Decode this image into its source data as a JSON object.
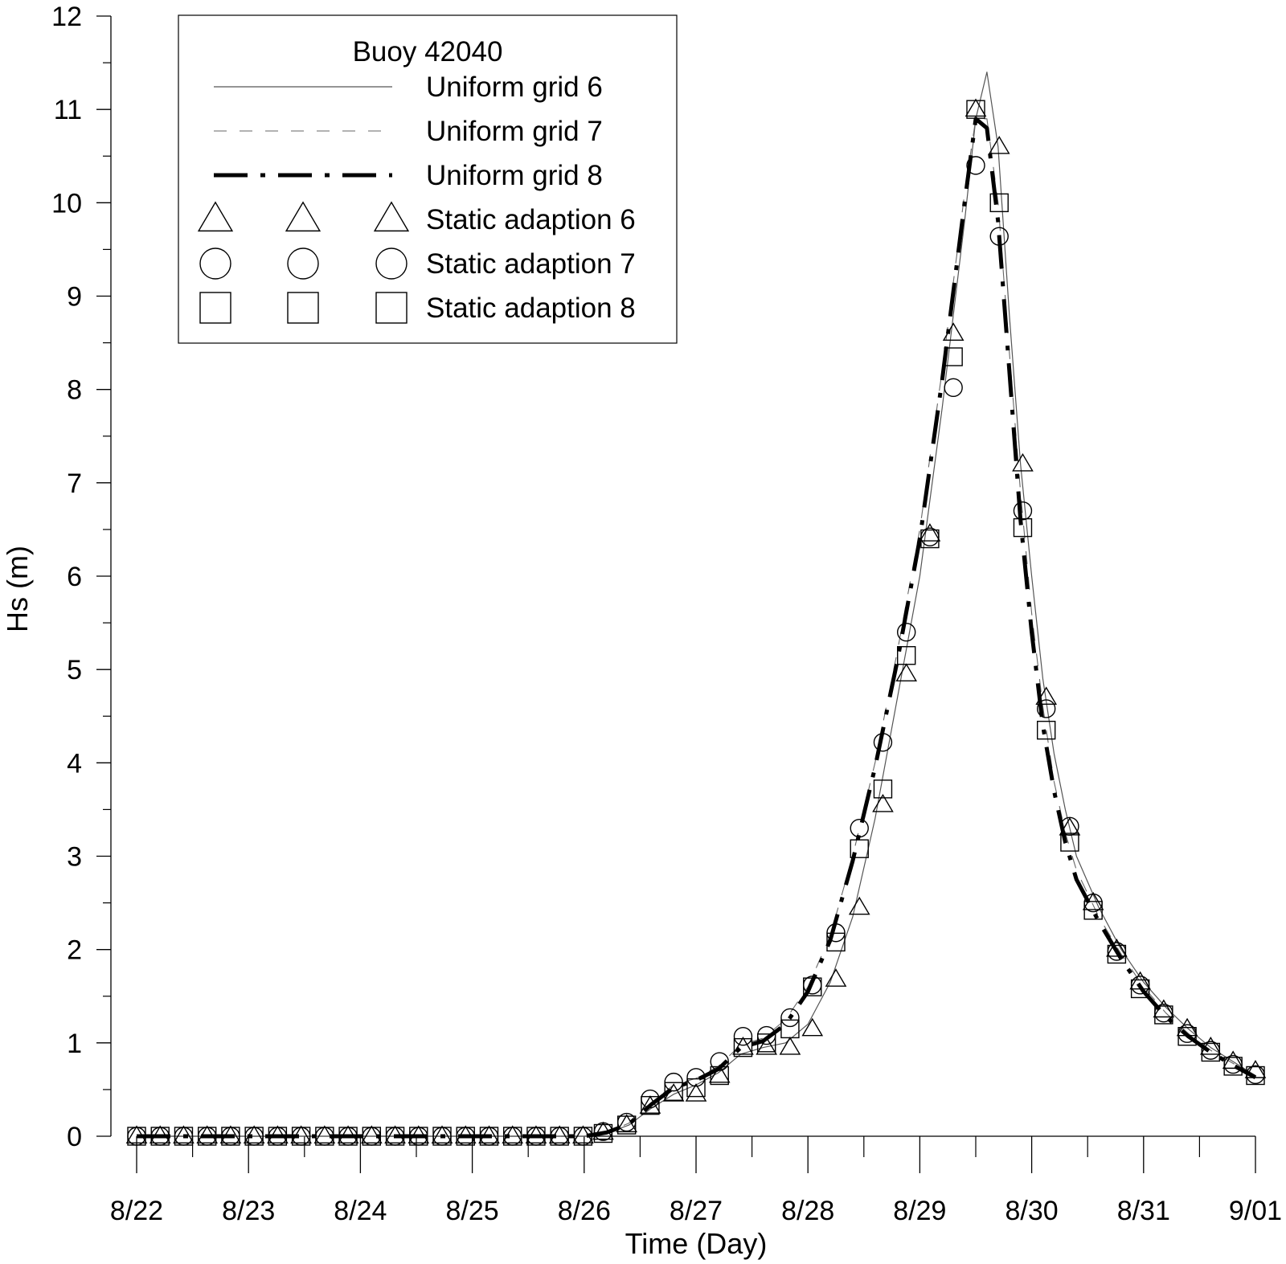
{
  "chart_data": {
    "type": "line",
    "xlabel": "Time (Day)",
    "ylabel": "Hs (m)",
    "xlim": [
      22,
      32
    ],
    "ylim": [
      0,
      12
    ],
    "x_ticks": [
      {
        "value": 22,
        "label": "8/22"
      },
      {
        "value": 23,
        "label": "8/23"
      },
      {
        "value": 24,
        "label": "8/24"
      },
      {
        "value": 25,
        "label": "8/25"
      },
      {
        "value": 26,
        "label": "8/26"
      },
      {
        "value": 27,
        "label": "8/27"
      },
      {
        "value": 28,
        "label": "8/28"
      },
      {
        "value": 29,
        "label": "8/29"
      },
      {
        "value": 30,
        "label": "8/30"
      },
      {
        "value": 31,
        "label": "8/31"
      },
      {
        "value": 32,
        "label": "9/01"
      }
    ],
    "y_ticks": [
      0,
      1,
      2,
      3,
      4,
      5,
      6,
      7,
      8,
      9,
      10,
      11,
      12
    ],
    "legend": {
      "title": "Buoy 42040",
      "placement": "top-left"
    },
    "series": [
      {
        "name": "Uniform grid 6",
        "style": "thin-solid",
        "x": [
          22,
          26.0,
          26.2,
          26.4,
          26.6,
          26.8,
          27.0,
          27.2,
          27.4,
          27.6,
          27.8,
          28.0,
          28.2,
          28.4,
          28.6,
          28.8,
          29.0,
          29.2,
          29.4,
          29.5,
          29.6,
          29.7,
          29.8,
          29.9,
          30.0,
          30.1,
          30.2,
          30.3,
          30.4,
          30.6,
          30.8,
          31.0,
          31.2,
          31.4,
          31.6,
          31.8,
          32.0
        ],
        "y": [
          0,
          0,
          0.03,
          0.12,
          0.3,
          0.45,
          0.55,
          0.68,
          0.88,
          0.95,
          1.0,
          1.2,
          1.65,
          2.35,
          3.4,
          4.7,
          6.0,
          7.8,
          9.8,
          10.9,
          11.4,
          10.6,
          8.8,
          7.2,
          6.0,
          4.9,
          4.1,
          3.5,
          3.0,
          2.45,
          2.0,
          1.65,
          1.38,
          1.15,
          0.95,
          0.8,
          0.65
        ]
      },
      {
        "name": "Uniform grid 7",
        "style": "thin-dashed",
        "x": [
          22,
          26.0,
          26.2,
          26.4,
          26.6,
          26.8,
          27.0,
          27.2,
          27.4,
          27.6,
          27.8,
          28.0,
          28.2,
          28.4,
          28.6,
          28.8,
          29.0,
          29.2,
          29.4,
          29.5,
          29.6,
          29.7,
          29.8,
          29.9,
          30.0,
          30.1,
          30.2,
          30.3,
          30.4,
          30.6,
          30.8,
          31.0,
          31.2,
          31.4,
          31.6,
          31.8,
          32.0
        ],
        "y": [
          0,
          0,
          0.04,
          0.14,
          0.36,
          0.55,
          0.62,
          0.75,
          0.98,
          1.05,
          1.25,
          1.6,
          2.15,
          3.0,
          4.0,
          5.2,
          6.5,
          8.2,
          10.1,
          10.9,
          10.9,
          10.0,
          8.4,
          6.9,
          5.6,
          4.6,
          3.8,
          3.25,
          2.85,
          2.35,
          1.95,
          1.6,
          1.32,
          1.1,
          0.92,
          0.78,
          0.65
        ]
      },
      {
        "name": "Uniform grid 8",
        "style": "thick-dash-dot",
        "x": [
          22,
          26.0,
          26.2,
          26.4,
          26.6,
          26.8,
          27.0,
          27.2,
          27.4,
          27.6,
          27.8,
          28.0,
          28.2,
          28.4,
          28.6,
          28.8,
          29.0,
          29.2,
          29.4,
          29.5,
          29.6,
          29.7,
          29.8,
          29.9,
          30.0,
          30.1,
          30.2,
          30.3,
          30.4,
          30.6,
          30.8,
          31.0,
          31.2,
          31.4,
          31.6,
          31.8,
          32.0
        ],
        "y": [
          0,
          0,
          0.04,
          0.13,
          0.34,
          0.52,
          0.6,
          0.72,
          0.95,
          1.02,
          1.2,
          1.55,
          2.1,
          2.95,
          3.95,
          5.1,
          6.4,
          8.1,
          10.0,
          10.9,
          10.8,
          9.8,
          8.2,
          6.6,
          5.4,
          4.4,
          3.7,
          3.15,
          2.75,
          2.3,
          1.9,
          1.55,
          1.28,
          1.07,
          0.9,
          0.76,
          0.63
        ]
      },
      {
        "name": "Static adaption 6",
        "style": "triangle",
        "x": [
          22.0,
          22.21,
          22.42,
          22.63,
          22.84,
          23.05,
          23.26,
          23.47,
          23.68,
          23.89,
          24.1,
          24.31,
          24.52,
          24.73,
          24.94,
          25.15,
          25.36,
          25.57,
          25.78,
          25.99,
          26.17,
          26.38,
          26.59,
          26.8,
          27.0,
          27.21,
          27.42,
          27.63,
          27.84,
          28.04,
          28.25,
          28.46,
          28.67,
          28.88,
          29.09,
          29.3,
          29.5,
          29.71,
          29.92,
          30.13,
          30.34,
          30.55,
          30.76,
          30.97,
          31.18,
          31.39,
          31.6,
          31.8,
          32.0
        ],
        "y": [
          0,
          0,
          0,
          0,
          0,
          0,
          0,
          0,
          0,
          0,
          0,
          0,
          0,
          0,
          0,
          0,
          0,
          0,
          0,
          0,
          0.04,
          0.12,
          0.32,
          0.45,
          0.45,
          0.65,
          0.95,
          0.95,
          0.95,
          1.15,
          1.68,
          2.45,
          3.55,
          4.95,
          6.45,
          8.6,
          11.0,
          10.6,
          7.2,
          4.7,
          3.3,
          2.5,
          2.0,
          1.65,
          1.35,
          1.15,
          0.95,
          0.8,
          0.7
        ]
      },
      {
        "name": "Static adaption 7",
        "style": "circle",
        "x": [
          22.0,
          22.21,
          22.42,
          22.63,
          22.84,
          23.05,
          23.26,
          23.47,
          23.68,
          23.89,
          24.1,
          24.31,
          24.52,
          24.73,
          24.94,
          25.15,
          25.36,
          25.57,
          25.78,
          25.99,
          26.17,
          26.38,
          26.59,
          26.8,
          27.0,
          27.21,
          27.42,
          27.63,
          27.84,
          28.04,
          28.25,
          28.46,
          28.67,
          28.88,
          29.09,
          29.3,
          29.5,
          29.71,
          29.92,
          30.13,
          30.34,
          30.55,
          30.76,
          30.97,
          31.18,
          31.39,
          31.6,
          31.8,
          32.0
        ],
        "y": [
          0,
          0,
          0,
          0,
          0,
          0,
          0,
          0,
          0,
          0,
          0,
          0,
          0,
          0,
          0,
          0,
          0,
          0,
          0,
          0,
          0.05,
          0.15,
          0.4,
          0.58,
          0.63,
          0.8,
          1.07,
          1.08,
          1.27,
          1.62,
          2.18,
          3.3,
          4.22,
          5.4,
          6.42,
          8.02,
          10.4,
          9.64,
          6.7,
          4.58,
          3.32,
          2.5,
          1.98,
          1.62,
          1.32,
          1.1,
          0.92,
          0.77,
          0.66
        ]
      },
      {
        "name": "Static adaption 8",
        "style": "square",
        "x": [
          22.0,
          22.21,
          22.42,
          22.63,
          22.84,
          23.05,
          23.26,
          23.47,
          23.68,
          23.89,
          24.1,
          24.31,
          24.52,
          24.73,
          24.94,
          25.15,
          25.36,
          25.57,
          25.78,
          25.99,
          26.17,
          26.38,
          26.59,
          26.8,
          27.0,
          27.21,
          27.42,
          27.63,
          27.84,
          28.04,
          28.25,
          28.46,
          28.67,
          28.88,
          29.09,
          29.3,
          29.5,
          29.71,
          29.92,
          30.13,
          30.34,
          30.55,
          30.76,
          30.97,
          31.18,
          31.39,
          31.6,
          31.8,
          32.0
        ],
        "y": [
          0,
          0,
          0,
          0,
          0,
          0,
          0,
          0,
          0,
          0,
          0,
          0,
          0,
          0,
          0,
          0,
          0,
          0,
          0,
          0,
          0.03,
          0.12,
          0.33,
          0.48,
          0.52,
          0.65,
          0.95,
          1.0,
          1.15,
          1.6,
          2.08,
          3.08,
          3.72,
          5.15,
          6.4,
          8.35,
          11.0,
          10.0,
          6.52,
          4.35,
          3.15,
          2.42,
          1.95,
          1.58,
          1.3,
          1.07,
          0.9,
          0.75,
          0.65
        ]
      }
    ]
  }
}
